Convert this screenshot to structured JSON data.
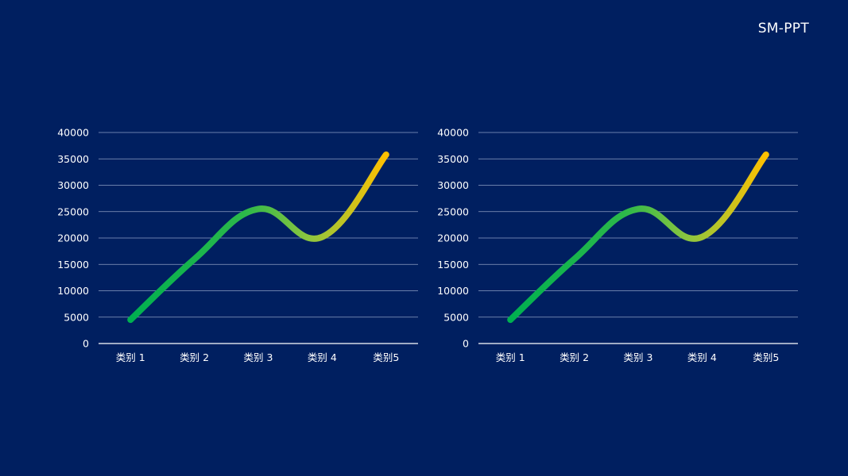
{
  "brand_label": "SM-PPT",
  "colors": {
    "background": "#001f60",
    "gridline": "#8e9fc4",
    "axis": "#ffffff",
    "text": "#ffffff",
    "line_gradient_start": "#00b050",
    "line_gradient_mid": "#8ec63f",
    "line_gradient_end": "#ffc000"
  },
  "chart_data": [
    {
      "type": "line",
      "categories": [
        "类别 1",
        "类别 2",
        "类别 3",
        "类别 4",
        "类别5"
      ],
      "series": [
        {
          "values": [
            4500,
            16000,
            25500,
            20200,
            35800
          ]
        }
      ],
      "ylim": [
        0,
        40000
      ],
      "yticks": [
        0,
        5000,
        10000,
        15000,
        20000,
        25000,
        30000,
        35000,
        40000
      ],
      "smooth": true,
      "grid": true,
      "legend": "none"
    },
    {
      "type": "line",
      "categories": [
        "类别 1",
        "类别 2",
        "类别 3",
        "类别 4",
        "类别5"
      ],
      "series": [
        {
          "values": [
            4500,
            16000,
            25500,
            20200,
            35800
          ]
        }
      ],
      "ylim": [
        0,
        40000
      ],
      "yticks": [
        0,
        5000,
        10000,
        15000,
        20000,
        25000,
        30000,
        35000,
        40000
      ],
      "smooth": true,
      "grid": true,
      "legend": "none"
    }
  ]
}
